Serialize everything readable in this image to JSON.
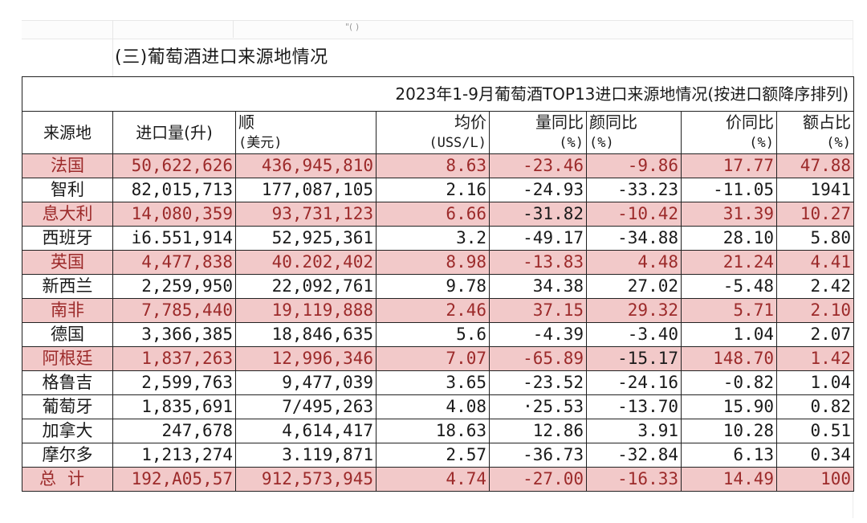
{
  "sheet": {
    "top_mark": "\"(    )",
    "section_title": "(三)葡萄酒进口来源地情况"
  },
  "table": {
    "caption": "2023年1-9月葡萄酒TOP13进口来源地情况(按进口额降序排列)",
    "headers": [
      {
        "main": "来源地",
        "sub": ""
      },
      {
        "main": "进口量(升)",
        "sub": ""
      },
      {
        "main": "顺",
        "sub": "(美元)"
      },
      {
        "main": "均价",
        "sub": "(USS/L)"
      },
      {
        "main": "量同比",
        "sub": "(%)"
      },
      {
        "main": "颜同比",
        "sub": "(%)"
      },
      {
        "main": "价同比",
        "sub": "(%)"
      },
      {
        "main": "额占比",
        "sub": "(%)"
      }
    ],
    "rows": [
      {
        "origin": "法国",
        "volume": "50,622,626",
        "value": "436,945,810",
        "avg_price": "8.63",
        "vol_yoy": "-23.46",
        "val_yoy": "-9.86",
        "price_yoy": "17.77",
        "share": "47.88",
        "highlight": true
      },
      {
        "origin": "智利",
        "volume": "82,015,713",
        "value": "177,087,105",
        "avg_price": "2.16",
        "vol_yoy": "-24.93",
        "val_yoy": "-33.23",
        "price_yoy": "-11.05",
        "share": "1941",
        "highlight": false
      },
      {
        "origin": "息大利",
        "volume": "14,080,359",
        "value": "93,731,123",
        "avg_price": "6.66",
        "vol_yoy": "-31.82",
        "val_yoy": "-10.42",
        "price_yoy": "31.39",
        "share": "10.27",
        "highlight": true
      },
      {
        "origin": "西班牙",
        "volume": "i6.551,914",
        "value": "52,925,361",
        "avg_price": "3.2",
        "vol_yoy": "-49.17",
        "val_yoy": "-34.88",
        "price_yoy": "28.10",
        "share": "5.80",
        "highlight": false
      },
      {
        "origin": "英国",
        "volume": "4,477,838",
        "value": "40.202,402",
        "avg_price": "8.98",
        "vol_yoy": "-13.83",
        "val_yoy": "4.48",
        "price_yoy": "21.24",
        "share": "4.41",
        "highlight": true
      },
      {
        "origin": "新西兰",
        "volume": "2,259,950",
        "value": "22,092,761",
        "avg_price": "9.78",
        "vol_yoy": "34.38",
        "val_yoy": "27.02",
        "price_yoy": "-5.48",
        "share": "2.42",
        "highlight": false
      },
      {
        "origin": "南非",
        "volume": "7,785,440",
        "value": "19,119,888",
        "avg_price": "2.46",
        "vol_yoy": "37.15",
        "val_yoy": "29.32",
        "price_yoy": "5.71",
        "share": "2.10",
        "highlight": true
      },
      {
        "origin": "德国",
        "volume": "3,366,385",
        "value": "18,846,635",
        "avg_price": "5.6",
        "vol_yoy": "-4.39",
        "val_yoy": "-3.40",
        "price_yoy": "1.04",
        "share": "2.07",
        "highlight": false
      },
      {
        "origin": "阿根廷",
        "volume": "1,837,263",
        "value": "12,996,346",
        "avg_price": "7.07",
        "vol_yoy": "-65.89",
        "val_yoy": "-15.17",
        "price_yoy": "148.70",
        "share": "1.42",
        "highlight": true
      },
      {
        "origin": "格鲁吉",
        "volume": "2,599,763",
        "value": "9,477,039",
        "avg_price": "3.65",
        "vol_yoy": "-23.52",
        "val_yoy": "-24.16",
        "price_yoy": "-0.82",
        "share": "1.04",
        "highlight": false
      },
      {
        "origin": "葡萄牙",
        "volume": "1,835,691",
        "value": "7/495,263",
        "avg_price": "4.08",
        "vol_yoy": "·25.53",
        "val_yoy": "-13.70",
        "price_yoy": "15.90",
        "share": "0.82",
        "highlight": false
      },
      {
        "origin": "加拿大",
        "volume": "247,678",
        "value": "4,614,417",
        "avg_price": "18.63",
        "vol_yoy": "12.86",
        "val_yoy": "3.91",
        "price_yoy": "10.28",
        "share": "0.51",
        "highlight": false
      },
      {
        "origin": "摩尔多",
        "volume": "1,213,274",
        "value": "3.119,871",
        "avg_price": "2.57",
        "vol_yoy": "-36.73",
        "val_yoy": "-32.84",
        "price_yoy": "6.13",
        "share": "0.34",
        "highlight": false
      },
      {
        "origin": "总计",
        "volume": "192,A05,57",
        "value": "912,573,945",
        "avg_price": "4.74",
        "vol_yoy": "-27.00",
        "val_yoy": "-16.33",
        "price_yoy": "14.49",
        "share": "100",
        "highlight": true
      }
    ]
  },
  "colors": {
    "highlight_fill": "#f2c9c9",
    "highlight_text": "#9c2a2a",
    "border": "#222222"
  }
}
